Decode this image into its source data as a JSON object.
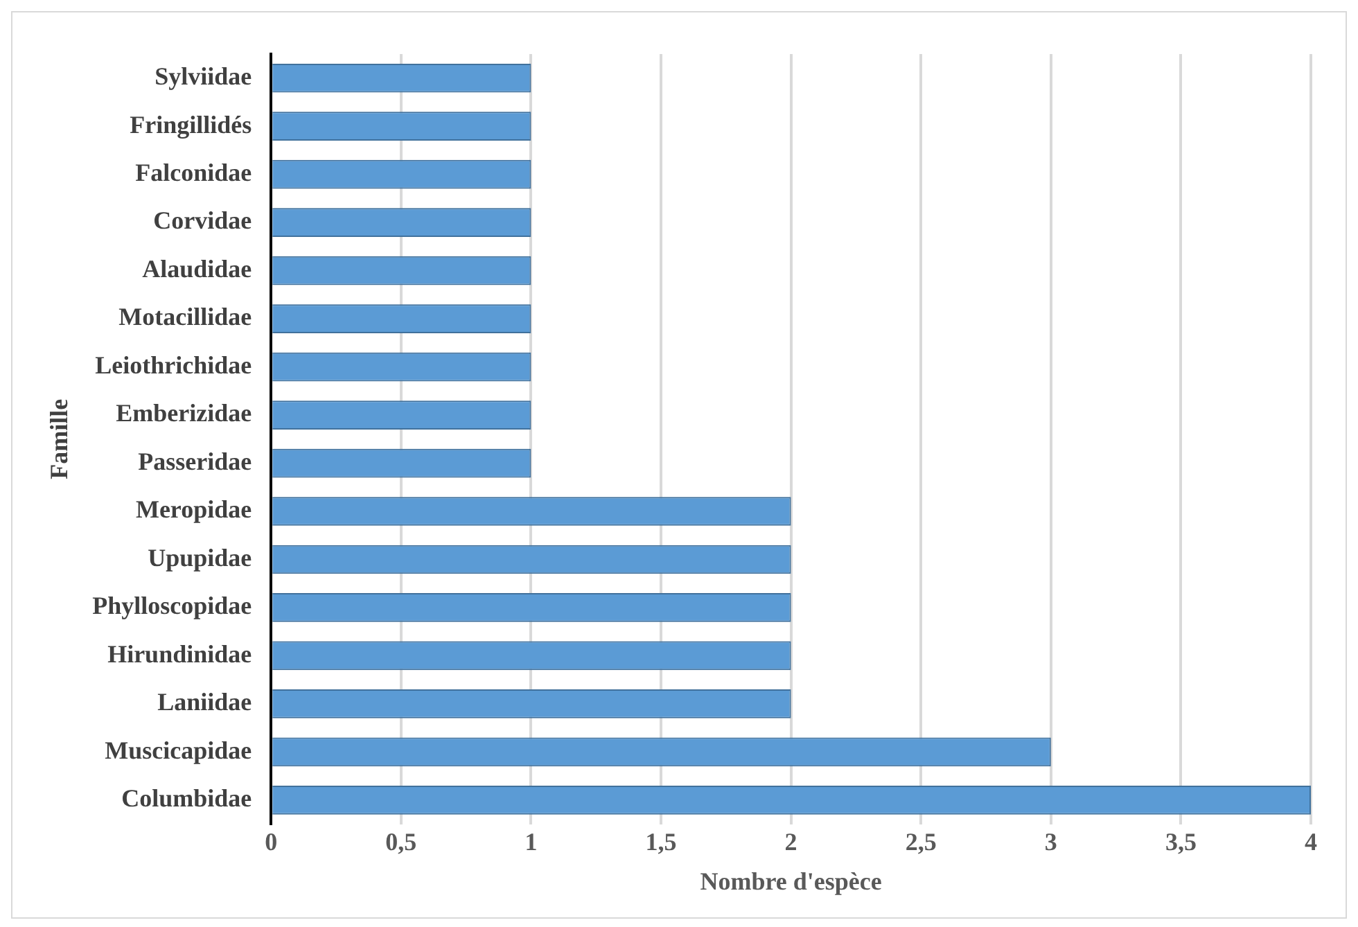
{
  "chart_data": {
    "type": "bar",
    "orientation": "horizontal",
    "xlabel": "Nombre d'espèce",
    "ylabel": "Famille",
    "categories": [
      "Sylviidae",
      "Fringillidés",
      "Falconidae",
      "Corvidae",
      "Alaudidae",
      "Motacillidae",
      "Leiothrichidae",
      "Emberizidae",
      "Passeridae",
      "Meropidae",
      "Upupidae",
      "Phylloscopidae",
      "Hirundinidae",
      "Laniidae",
      "Muscicapidae",
      "Columbidae"
    ],
    "values": [
      1,
      1,
      1,
      1,
      1,
      1,
      1,
      1,
      1,
      2,
      2,
      2,
      2,
      2,
      3,
      4
    ],
    "color": "#5b9bd5",
    "xlim": [
      0,
      4
    ],
    "xticks": [
      0,
      {
        "value": 0.5,
        "label": "0,5"
      },
      1,
      {
        "value": 1.5,
        "label": "1,5"
      },
      2,
      {
        "value": 2.5,
        "label": "2,5"
      },
      3,
      {
        "value": 3.5,
        "label": "3,5"
      },
      4
    ],
    "grid": "x",
    "legend": false
  }
}
